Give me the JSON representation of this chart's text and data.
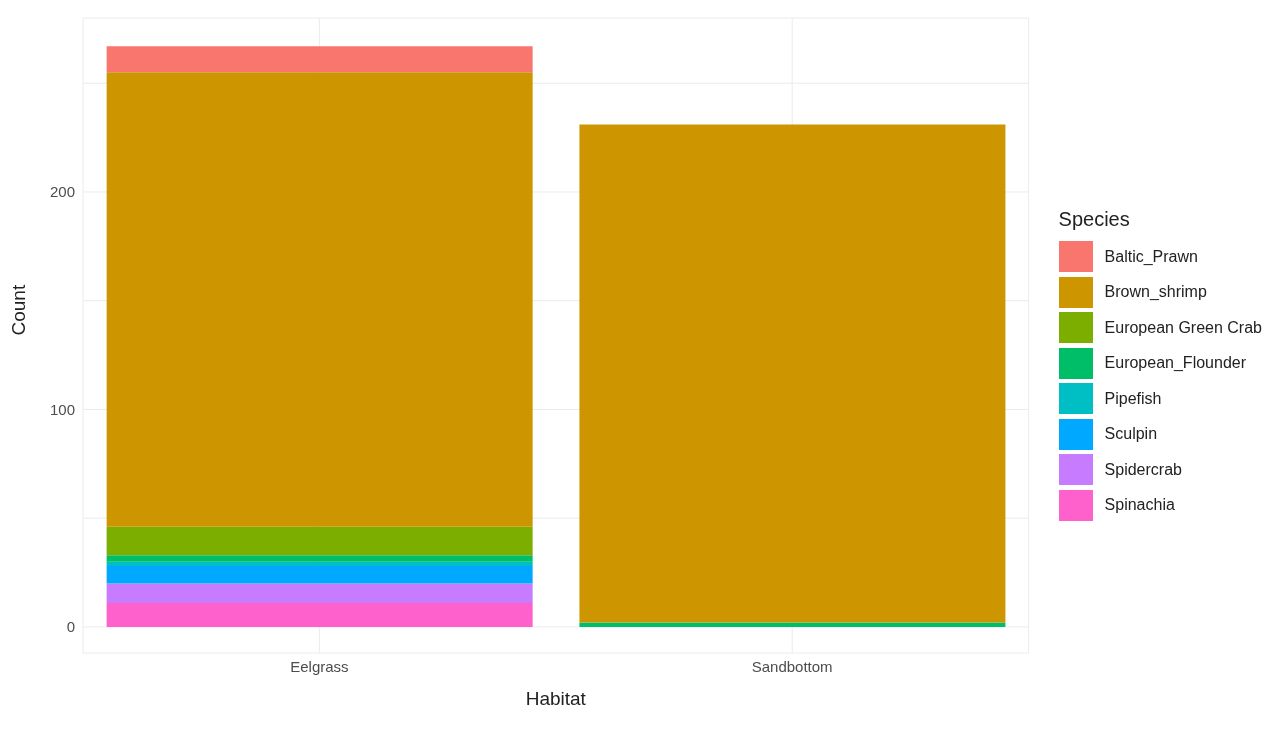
{
  "chart_data": {
    "type": "bar",
    "xlabel": "Habitat",
    "ylabel": "Count",
    "legend_title": "Species",
    "categories": [
      "Eelgrass",
      "Sandbottom"
    ],
    "stacked": true,
    "series": [
      {
        "name": "Spinachia",
        "color": "#ff61cc",
        "values": [
          11,
          null
        ]
      },
      {
        "name": "Spidercrab",
        "color": "#c77cff",
        "values": [
          9,
          null
        ]
      },
      {
        "name": "Sculpin",
        "color": "#00a9ff",
        "values": [
          8,
          null
        ]
      },
      {
        "name": "Pipefish",
        "color": "#00bfc4",
        "values": [
          2,
          null
        ]
      },
      {
        "name": "European_Flounder",
        "color": "#00be67",
        "values": [
          3,
          2
        ]
      },
      {
        "name": "European Green Crab",
        "color": "#7cae00",
        "values": [
          13,
          null
        ]
      },
      {
        "name": "Brown_shrimp",
        "color": "#cd9600",
        "values": [
          209,
          229
        ]
      },
      {
        "name": "Baltic_Prawn",
        "color": "#f8766d",
        "values": [
          12,
          null
        ]
      }
    ],
    "ylim": [
      -12,
      280
    ],
    "yticks": [
      0,
      {
        "value": 50,
        "label": null
      },
      100,
      {
        "value": 150,
        "label": null
      },
      200,
      {
        "value": 250,
        "label": null
      }
    ],
    "grid": true,
    "legend": "right"
  }
}
